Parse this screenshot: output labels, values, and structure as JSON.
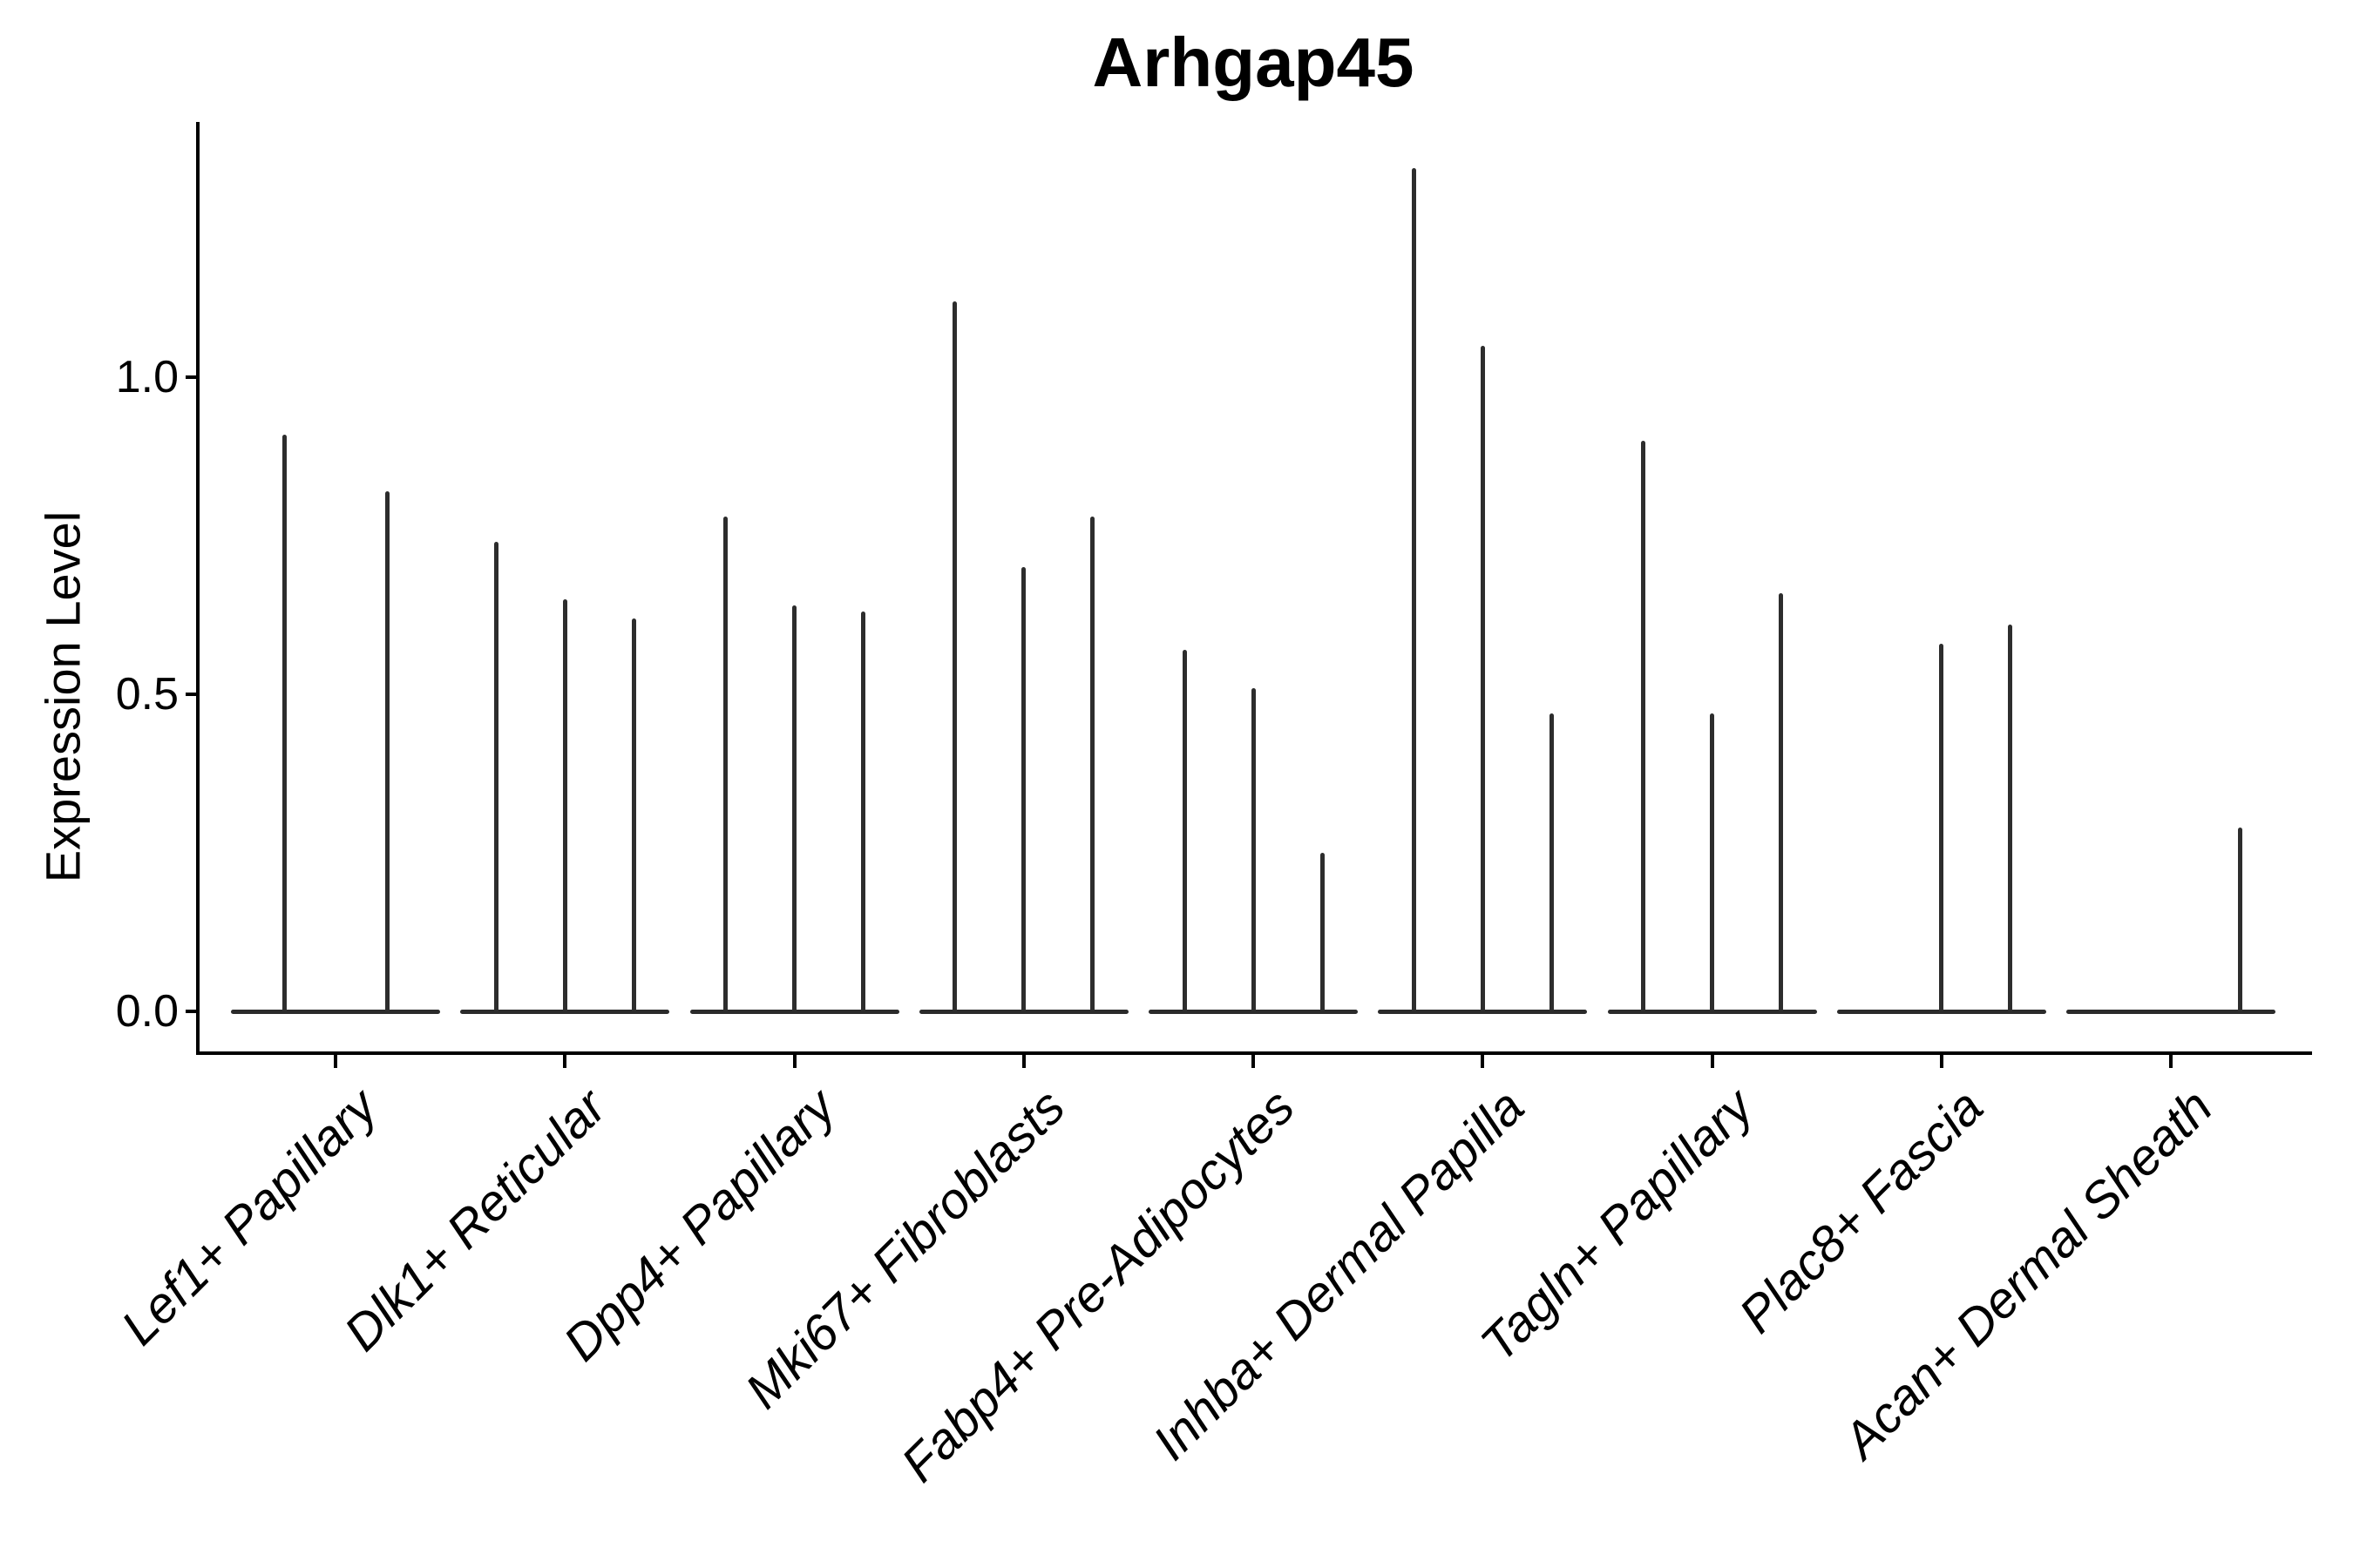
{
  "title": "Arhgap45",
  "colors": {
    "violin": "#2d2d2d",
    "axis": "#000000",
    "background": "#ffffff"
  },
  "y_axis": {
    "label": "Expression Level",
    "tick_labels": [
      "0.0",
      "0.5",
      "1.0"
    ]
  },
  "chart_data": {
    "type": "violin",
    "title": "Arhgap45",
    "xlabel": "",
    "ylabel": "Expression Level",
    "y_ticks": [
      0.0,
      0.5,
      1.0
    ],
    "ylim": [
      -0.07,
      1.4
    ],
    "grid": false,
    "legend": "none",
    "orientation": "vertical",
    "description": "Grouped thin violin plot (stacked-violin style); most cells at 0 giving a flat baseline per category with narrow spikes whose tips mark the maximum expression of each sub-violin.",
    "categories": [
      "Lef1+ Papillary",
      "Dlk1+ Reticular",
      "Dpp4+ Papillary",
      "Mki67+ Fibroblasts",
      "Fabp4+ Pre-Adipocytes",
      "Inhba+ Dermal Papilla",
      "Tagln+ Papillary",
      "Plac8+ Fascia",
      "Acan+ Dermal Sheath"
    ],
    "violins": [
      {
        "category": "Lef1+ Papillary",
        "values": [
          0.91,
          0.82
        ]
      },
      {
        "category": "Dlk1+ Reticular",
        "values": [
          0.74,
          0.65,
          0.62
        ]
      },
      {
        "category": "Dpp4+ Papillary",
        "values": [
          0.78,
          0.64,
          0.63
        ]
      },
      {
        "category": "Mki67+ Fibroblasts",
        "values": [
          1.12,
          0.7,
          0.78
        ]
      },
      {
        "category": "Fabp4+ Pre-Adipocytes",
        "values": [
          0.57,
          0.51,
          0.25
        ]
      },
      {
        "category": "Inhba+ Dermal Papilla",
        "values": [
          1.33,
          1.05,
          0.47
        ]
      },
      {
        "category": "Tagln+ Papillary",
        "values": [
          0.9,
          0.47,
          0.66
        ]
      },
      {
        "category": "Plac8+ Fascia",
        "values": [
          0,
          0.58,
          0.61
        ]
      },
      {
        "category": "Acan+ Dermal Sheath",
        "values": [
          0,
          0,
          0.29
        ]
      }
    ]
  }
}
